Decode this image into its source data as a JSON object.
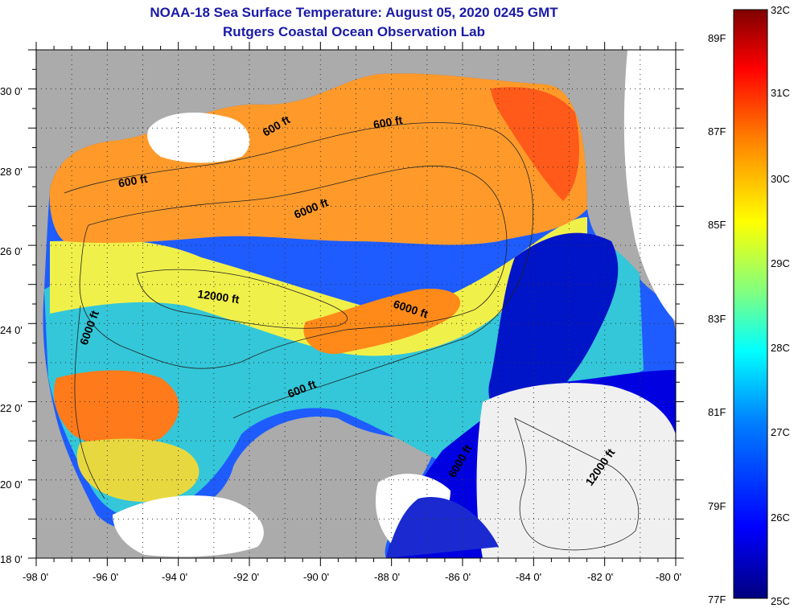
{
  "title": {
    "line1": "NOAA-18 Sea Surface Temperature:  August 05, 2020 0245 GMT",
    "line2": "Rutgers Coastal Ocean Observation Lab"
  },
  "axes": {
    "x_ticks": [
      "-98 0'",
      "-96 0'",
      "-94 0'",
      "-92 0'",
      "-90 0'",
      "-88 0'",
      "-86 0'",
      "-84 0'",
      "-82 0'",
      "-80 0'"
    ],
    "y_ticks": [
      "30 0'",
      "28 0'",
      "26 0'",
      "24 0'",
      "22 0'",
      "20 0'",
      "18 0'"
    ]
  },
  "contours": {
    "labels": [
      "600 ft",
      "600 ft",
      "600 ft",
      "600 ft",
      "6000 ft",
      "6000 ft",
      "6000 ft",
      "6000 ft",
      "12000 ft",
      "12000 ft"
    ]
  },
  "colorbar": {
    "celsius": [
      "32C",
      "31C",
      "30C",
      "29C",
      "28C",
      "27C",
      "26C",
      "25C"
    ],
    "fahrenheit": [
      "89F",
      "87F",
      "85F",
      "83F",
      "81F",
      "79F",
      "77F"
    ],
    "colors": [
      "#00007f",
      "#0000ff",
      "#0080ff",
      "#00ffff",
      "#80ff80",
      "#ffff00",
      "#ff8000",
      "#ff0000",
      "#7f0000"
    ]
  }
}
